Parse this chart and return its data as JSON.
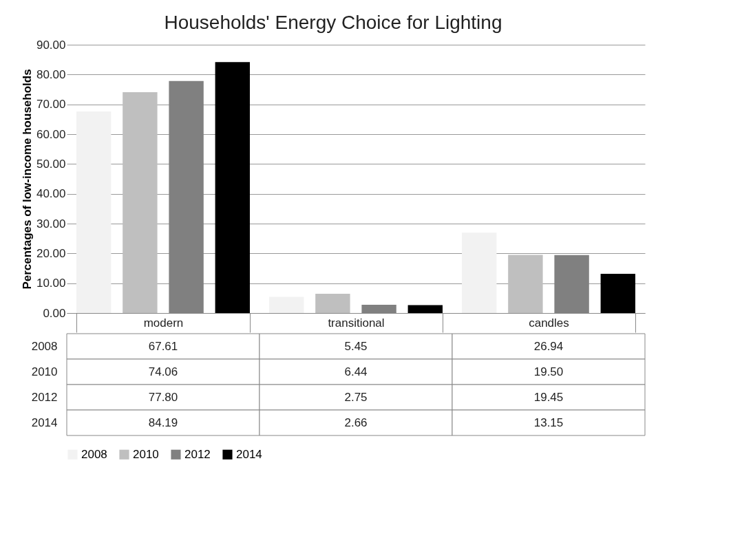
{
  "chart_data": {
    "type": "bar",
    "title": "Households' Energy Choice for Lighting",
    "ylabel": "Percentages of low-income households",
    "categories": [
      "modern",
      "transitional",
      "candles"
    ],
    "series": [
      {
        "name": "2008",
        "color": "#f2f2f2",
        "values": [
          67.61,
          5.45,
          26.94
        ],
        "value_labels": [
          "67.61",
          "5.45",
          "26.94"
        ]
      },
      {
        "name": "2010",
        "color": "#bfbfbf",
        "values": [
          74.06,
          6.44,
          19.5
        ],
        "value_labels": [
          "74.06",
          "6.44",
          "19.50"
        ]
      },
      {
        "name": "2012",
        "color": "#808080",
        "values": [
          77.8,
          2.75,
          19.45
        ],
        "value_labels": [
          "77.80",
          "2.75",
          "19.45"
        ]
      },
      {
        "name": "2014",
        "color": "#000000",
        "values": [
          84.19,
          2.66,
          13.15
        ],
        "value_labels": [
          "84.19",
          "2.66",
          "13.15"
        ]
      }
    ],
    "ylim": [
      0,
      90
    ],
    "yticks": [
      {
        "value": 0,
        "label": "0.00"
      },
      {
        "value": 10,
        "label": "10.00"
      },
      {
        "value": 20,
        "label": "20.00"
      },
      {
        "value": 30,
        "label": "30.00"
      },
      {
        "value": 40,
        "label": "40.00"
      },
      {
        "value": 50,
        "label": "50.00"
      },
      {
        "value": 60,
        "label": "60.00"
      },
      {
        "value": 70,
        "label": "70.00"
      },
      {
        "value": 80,
        "label": "80.00"
      },
      {
        "value": 90,
        "label": "90.00"
      }
    ],
    "grid": "y",
    "legend": "bottom"
  }
}
